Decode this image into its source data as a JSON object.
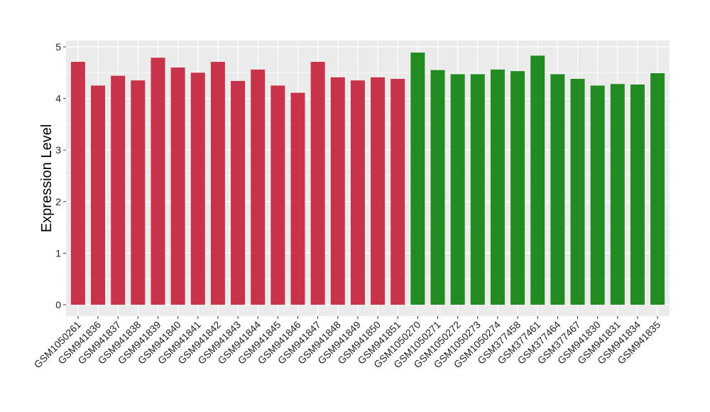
{
  "chart_data": {
    "type": "bar",
    "ylabel": "Expression Level",
    "xlabel": "",
    "ylim": [
      0,
      5
    ],
    "yticks": [
      0,
      1,
      2,
      3,
      4,
      5
    ],
    "grid": true,
    "categories": [
      "GSM1050261",
      "GSM941836",
      "GSM941837",
      "GSM941838",
      "GSM941839",
      "GSM941840",
      "GSM941841",
      "GSM941842",
      "GSM941843",
      "GSM941844",
      "GSM941845",
      "GSM941846",
      "GSM941847",
      "GSM941848",
      "GSM941849",
      "GSM941850",
      "GSM941851",
      "GSM1050270",
      "GSM1050271",
      "GSM1050272",
      "GSM1050273",
      "GSM1050274",
      "GSM377458",
      "GSM377461",
      "GSM377464",
      "GSM377467",
      "GSM941830",
      "GSM941831",
      "GSM941834",
      "GSM941835"
    ],
    "values": [
      4.71,
      4.25,
      4.44,
      4.35,
      4.79,
      4.6,
      4.5,
      4.71,
      4.34,
      4.56,
      4.25,
      4.11,
      4.71,
      4.41,
      4.35,
      4.41,
      4.38,
      4.89,
      4.55,
      4.47,
      4.47,
      4.56,
      4.53,
      4.83,
      4.47,
      4.38,
      4.25,
      4.28,
      4.27,
      4.49
    ],
    "group_sizes": [
      17,
      13
    ],
    "colors": [
      "#c8334a",
      "#228b22"
    ],
    "panel_background": "#ebebeb",
    "gridline_color": "#ffffff"
  }
}
